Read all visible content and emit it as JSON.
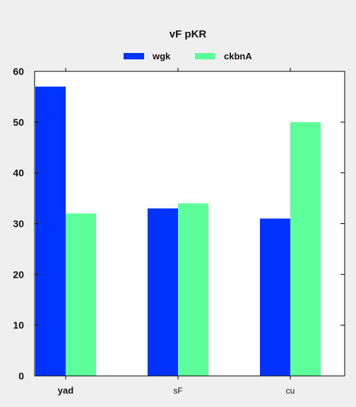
{
  "chart_data": {
    "type": "bar",
    "title": "vF pKR",
    "categories": [
      "yad",
      "sF",
      "cu"
    ],
    "series": [
      {
        "name": "wgk",
        "values": [
          57,
          33,
          31
        ],
        "color": "#0033ff"
      },
      {
        "name": "ckbnA",
        "values": [
          32,
          34,
          50
        ],
        "color": "#5cff99"
      }
    ],
    "xlabel": "",
    "ylabel": "",
    "ylim": [
      0,
      60
    ],
    "yticks": [
      0,
      10,
      20,
      30,
      40,
      50,
      60
    ],
    "legend_position": "top-center",
    "grid": false
  }
}
